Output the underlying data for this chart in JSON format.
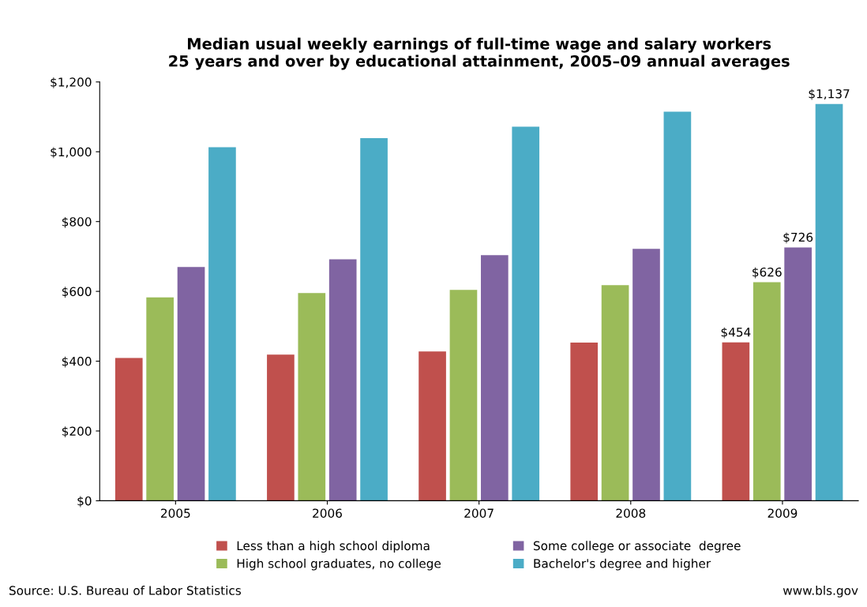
{
  "chart_data": {
    "type": "bar",
    "title": "Median usual weekly earnings of full-time wage and salary workers\n25 years and over by educational attainment, 2005–09 annual averages",
    "categories": [
      "2005",
      "2006",
      "2007",
      "2008",
      "2009"
    ],
    "series": [
      {
        "name": "Less than a high school diploma",
        "color": "#c0504d",
        "values": [
          409,
          419,
          428,
          453,
          454
        ],
        "value_labels": [
          null,
          null,
          null,
          null,
          "$454"
        ]
      },
      {
        "name": "High school graduates, no college",
        "color": "#9bbb59",
        "values": [
          583,
          595,
          604,
          618,
          626
        ],
        "value_labels": [
          null,
          null,
          null,
          null,
          "$626"
        ]
      },
      {
        "name": "Some college or associate  degree",
        "color": "#8064a2",
        "values": [
          670,
          692,
          704,
          722,
          726
        ],
        "value_labels": [
          null,
          null,
          null,
          null,
          "$726"
        ]
      },
      {
        "name": "Bachelor's degree and higher",
        "color": "#4bacc6",
        "values": [
          1013,
          1039,
          1072,
          1115,
          1137
        ],
        "value_labels": [
          null,
          null,
          null,
          null,
          "$1,137"
        ]
      }
    ],
    "ylim": [
      0,
      1200
    ],
    "yticks": [
      {
        "value": 0,
        "label": "$0"
      },
      {
        "value": 200,
        "label": "$200"
      },
      {
        "value": 400,
        "label": "$400"
      },
      {
        "value": 600,
        "label": "$600"
      },
      {
        "value": 800,
        "label": "$800"
      },
      {
        "value": 1000,
        "label": "$1,000"
      },
      {
        "value": 1200,
        "label": "$1,200"
      }
    ],
    "grid": false,
    "legend": "bottom",
    "annotations": [
      "Source: U.S. Bureau of Labor Statistics",
      "www.bls.gov"
    ]
  }
}
